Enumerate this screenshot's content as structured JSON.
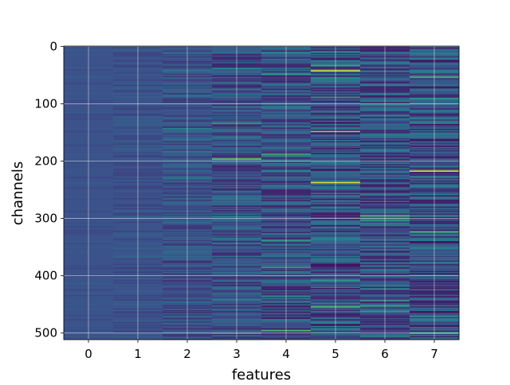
{
  "chart_data": {
    "type": "heatmap",
    "title": "",
    "xlabel": "features",
    "ylabel": "channels",
    "x_categories": [
      "0",
      "1",
      "2",
      "3",
      "4",
      "5",
      "6",
      "7"
    ],
    "y_ticks": [
      0,
      100,
      200,
      300,
      400,
      500
    ],
    "y_tick_labels": [
      "0",
      "100",
      "200",
      "300",
      "400",
      "500"
    ],
    "ylim": [
      511.5,
      -0.5
    ],
    "n_channels": 512,
    "n_features": 8,
    "grid": true,
    "colormap": "viridis",
    "colormap_stops": [
      "#440154",
      "#3b528b",
      "#21918c",
      "#5ec962",
      "#fde725"
    ],
    "baseline_color": "#3b528b",
    "columns": [
      {
        "feature": 0,
        "texture_level": 0.03,
        "highlights": []
      },
      {
        "feature": 1,
        "texture_level": 0.05,
        "highlights": []
      },
      {
        "feature": 2,
        "texture_level": 0.1,
        "highlights": [
          {
            "channel": 42,
            "value": 0.4
          },
          {
            "channel": 143,
            "value": 0.45
          },
          {
            "channel": 183,
            "value": 0.4
          },
          {
            "channel": 230,
            "value": 0.4
          },
          {
            "channel": 382,
            "value": 0.35
          },
          {
            "channel": 470,
            "value": 0.35
          }
        ]
      },
      {
        "feature": 3,
        "texture_level": 0.14,
        "highlights": [
          {
            "channel": 38,
            "value": 0.5
          },
          {
            "channel": 134,
            "value": 0.55
          },
          {
            "channel": 196,
            "value": 0.8
          },
          {
            "channel": 296,
            "value": 0.45
          },
          {
            "channel": 441,
            "value": 0.45
          },
          {
            "channel": 500,
            "value": 0.5
          }
        ]
      },
      {
        "feature": 4,
        "texture_level": 0.16,
        "highlights": [
          {
            "channel": 10,
            "value": 0.5
          },
          {
            "channel": 48,
            "value": 0.55
          },
          {
            "channel": 188,
            "value": 0.6
          },
          {
            "channel": 218,
            "value": 0.5
          },
          {
            "channel": 338,
            "value": 0.55
          },
          {
            "channel": 385,
            "value": 0.55
          },
          {
            "channel": 435,
            "value": 0.55
          },
          {
            "channel": 495,
            "value": 0.7
          }
        ]
      },
      {
        "feature": 5,
        "texture_level": 0.2,
        "highlights": [
          {
            "channel": 33,
            "value": 0.6
          },
          {
            "channel": 42,
            "value": 0.95
          },
          {
            "channel": 88,
            "value": 0.55
          },
          {
            "channel": 148,
            "value": 0.85
          },
          {
            "channel": 237,
            "value": 0.95
          },
          {
            "channel": 408,
            "value": 0.55
          },
          {
            "channel": 454,
            "value": 0.7
          },
          {
            "channel": 482,
            "value": 0.5
          }
        ]
      },
      {
        "feature": 6,
        "texture_level": 0.18,
        "highlights": [
          {
            "channel": 28,
            "value": 0.45
          },
          {
            "channel": 120,
            "value": 0.5
          },
          {
            "channel": 295,
            "value": 0.7
          },
          {
            "channel": 303,
            "value": 0.55
          },
          {
            "channel": 443,
            "value": 0.6
          },
          {
            "channel": 452,
            "value": 0.6
          },
          {
            "channel": 462,
            "value": 0.55
          }
        ]
      },
      {
        "feature": 7,
        "texture_level": 0.2,
        "highlights": [
          {
            "channel": 53,
            "value": 0.65
          },
          {
            "channel": 90,
            "value": 0.55
          },
          {
            "channel": 217,
            "value": 0.98
          },
          {
            "channel": 323,
            "value": 0.7
          },
          {
            "channel": 470,
            "value": 0.55
          },
          {
            "channel": 500,
            "value": 0.6
          }
        ]
      }
    ]
  }
}
